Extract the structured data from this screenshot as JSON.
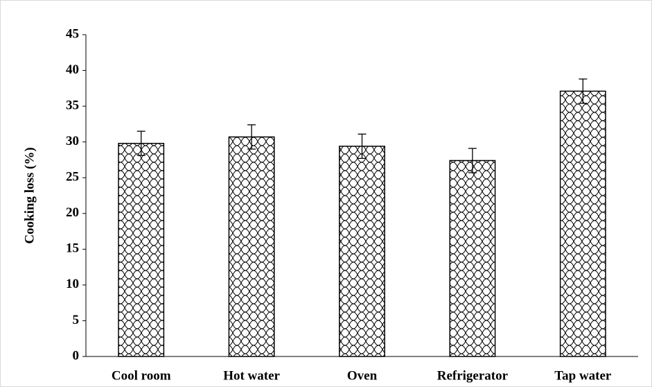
{
  "chart_data": {
    "type": "bar",
    "y_label": "Cooking loss (%)",
    "categories": [
      "Cool room",
      "Hot water",
      "Oven",
      "Refrigerator",
      "Tap water"
    ],
    "values": [
      29.8,
      30.7,
      29.4,
      27.4,
      37.1
    ],
    "errors": [
      1.7,
      1.7,
      1.7,
      1.7,
      1.7
    ],
    "color": "#000000",
    "ylim": [
      0,
      45
    ],
    "yticks": [
      0,
      5,
      10,
      15,
      20,
      25,
      30,
      35,
      40,
      45
    ],
    "grid": false
  }
}
